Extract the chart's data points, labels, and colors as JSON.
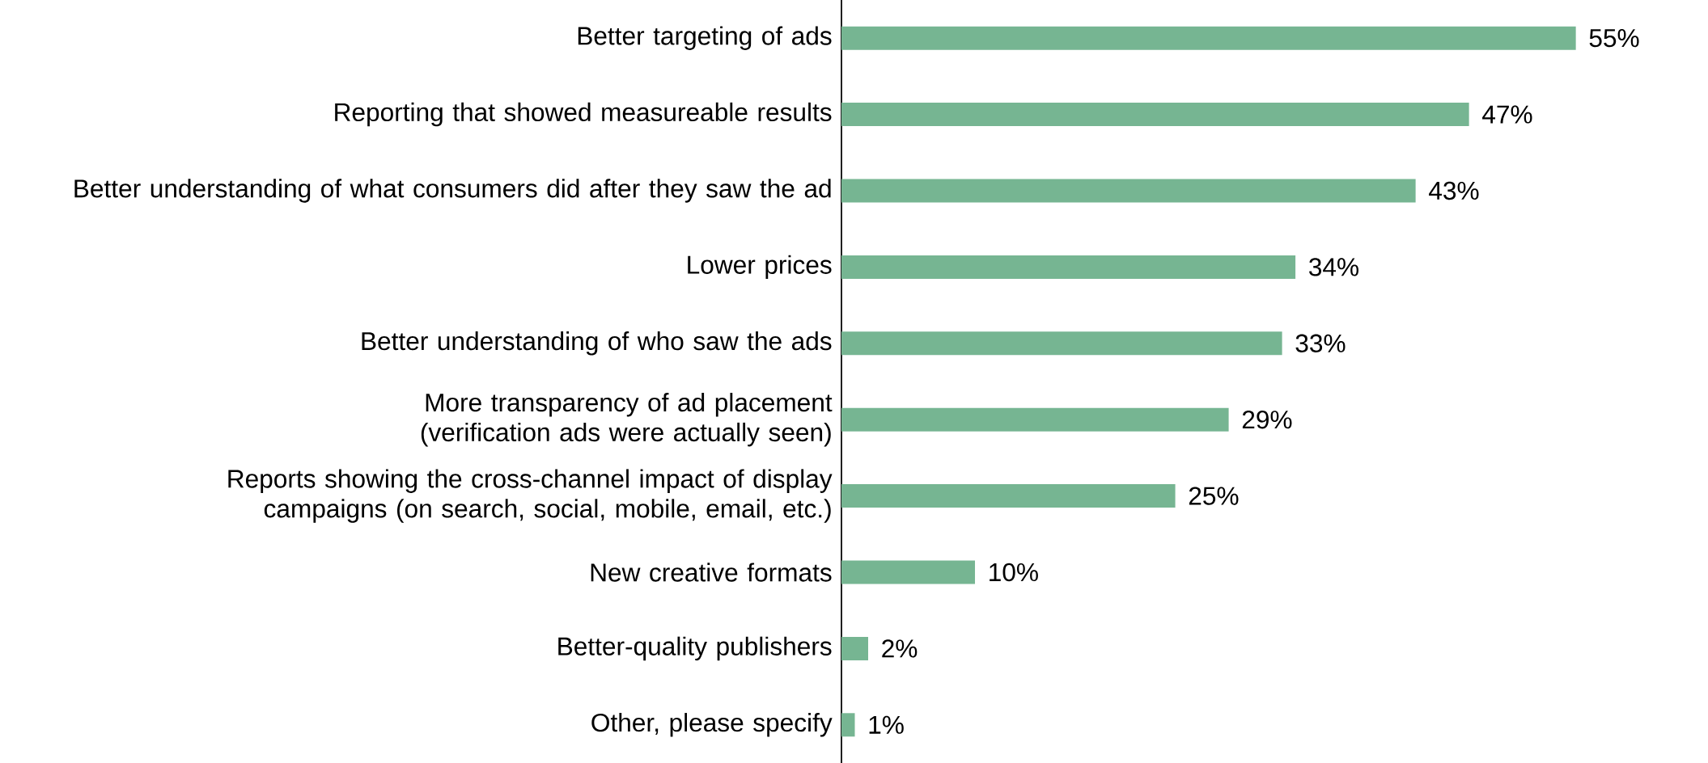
{
  "chart_data": {
    "type": "bar",
    "orientation": "horizontal",
    "color": "#76b592",
    "categories": [
      "Better targeting of ads",
      "Reporting that showed measureable results",
      "Better understanding of what consumers did after they saw the ad",
      "Lower prices",
      "Better understanding of who saw the ads",
      "More transparency of ad placement (verification ads were actually seen)",
      "Reports showing the cross-channel impact of display campaigns (on search, social, mobile, email, etc.)",
      "New creative formats",
      "Better-quality publishers",
      "Other, please specify"
    ],
    "values": [
      55,
      47,
      43,
      34,
      33,
      29,
      25,
      10,
      2,
      1
    ],
    "value_labels": [
      "55%",
      "47%",
      "43%",
      "34%",
      "33%",
      "29%",
      "25%",
      "10%",
      "2%",
      "1%"
    ]
  }
}
